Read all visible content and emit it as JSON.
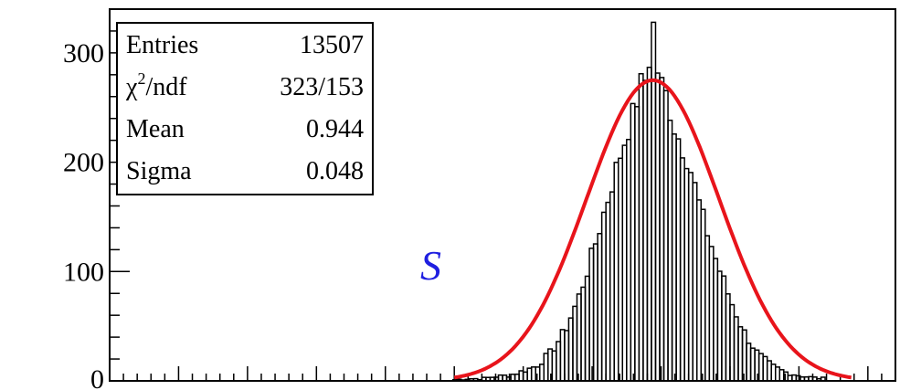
{
  "chart_data": {
    "type": "histogram",
    "ylim": [
      0,
      340
    ],
    "xlim": [
      0.55,
      1.12
    ],
    "yticks": [
      {
        "value": 0,
        "label": "0"
      },
      {
        "value": 100,
        "label": "100"
      },
      {
        "value": 200,
        "label": "200"
      },
      {
        "value": 300,
        "label": "300"
      }
    ],
    "grid": false,
    "colors": {
      "histogram": "#000000",
      "fit": "#e8141b",
      "annotation": "#1f1fe0",
      "mean_value": "#1f1fe0"
    },
    "stats": {
      "entries": {
        "label": "Entries",
        "value": "13507"
      },
      "chi2": {
        "label_chi": "χ",
        "label_sup": "2",
        "label_rest": "/ndf",
        "value": "323/153"
      },
      "mean": {
        "label": "Mean",
        "value": "0.944"
      },
      "sigma": {
        "label": "Sigma",
        "value": "0.048"
      }
    },
    "annotation": "S",
    "histogram": {
      "bin_width": 0.003,
      "bins": [
        [
          0.8,
          1
        ],
        [
          0.81,
          2
        ],
        [
          0.82,
          2
        ],
        [
          0.83,
          4
        ],
        [
          0.84,
          5
        ],
        [
          0.85,
          9
        ],
        [
          0.86,
          14
        ],
        [
          0.87,
          26
        ],
        [
          0.88,
          45
        ],
        [
          0.89,
          75
        ],
        [
          0.9,
          115
        ],
        [
          0.91,
          160
        ],
        [
          0.92,
          205
        ],
        [
          0.93,
          245
        ],
        [
          0.935,
          270
        ],
        [
          0.94,
          278
        ],
        [
          0.943,
          310
        ],
        [
          0.945,
          330
        ],
        [
          0.948,
          275
        ],
        [
          0.952,
          268
        ],
        [
          0.955,
          255
        ],
        [
          0.96,
          230
        ],
        [
          0.97,
          200
        ],
        [
          0.98,
          150
        ],
        [
          0.99,
          110
        ],
        [
          1.0,
          75
        ],
        [
          1.01,
          45
        ],
        [
          1.02,
          25
        ],
        [
          1.03,
          14
        ],
        [
          1.04,
          8
        ],
        [
          1.05,
          5
        ],
        [
          1.06,
          3
        ],
        [
          1.07,
          2
        ]
      ]
    },
    "fit": {
      "type": "gaussian",
      "mean": 0.944,
      "sigma": 0.048,
      "amplitude": 275
    }
  }
}
